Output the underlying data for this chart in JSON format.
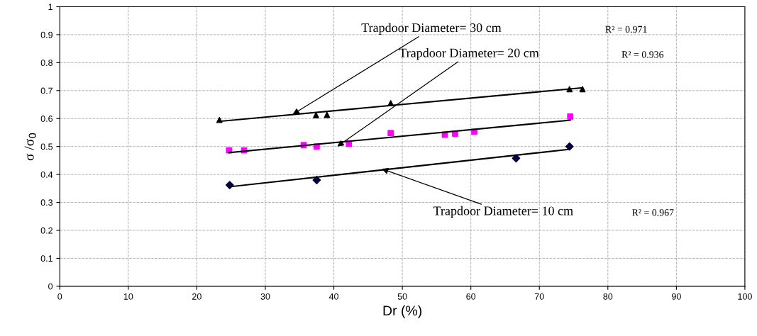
{
  "chart_data": {
    "type": "scatter",
    "xlabel": "Dr (%)",
    "ylabel": "σ /σ$_{0}$",
    "xlim": [
      0,
      100
    ],
    "xticks": [
      0,
      10,
      20,
      30,
      40,
      50,
      60,
      70,
      80,
      90,
      100
    ],
    "ylim": [
      0,
      1
    ],
    "yticks": [
      0,
      0.1,
      0.2,
      0.3,
      0.4,
      0.5,
      0.6,
      0.7,
      0.8,
      0.9,
      1
    ],
    "grid": true,
    "line_style": "solid",
    "series": [
      {
        "marker": "triangle",
        "color": "#000000",
        "x": [
          23.3,
          37.4,
          39,
          48.3,
          74.4,
          76.3
        ],
        "values": [
          0.595,
          0.612,
          0.613,
          0.655,
          0.705,
          0.705
        ]
      },
      {
        "marker": "square",
        "color": "#ff00ff",
        "x": [
          24.7,
          26.9,
          35.6,
          37.5,
          42.2,
          48.3,
          56.2,
          57.7,
          60.5,
          74.5
        ],
        "values": [
          0.486,
          0.486,
          0.505,
          0.5,
          0.51,
          0.548,
          0.542,
          0.546,
          0.553,
          0.607
        ]
      },
      {
        "marker": "diamond",
        "color": "#000040",
        "x": [
          24.8,
          37.5,
          66.6,
          74.4
        ],
        "values": [
          0.362,
          0.38,
          0.458,
          0.5
        ]
      },
      {
        "type": "line",
        "marker": "none",
        "color": "#000000",
        "x": [
          23.3,
          76.3
        ],
        "values": [
          0.59,
          0.71
        ]
      },
      {
        "type": "line",
        "marker": "none",
        "color": "#000000",
        "x": [
          24.7,
          74.5
        ],
        "values": [
          0.478,
          0.594
        ]
      },
      {
        "type": "line",
        "marker": "none",
        "color": "#000000",
        "x": [
          24.8,
          74.4
        ],
        "values": [
          0.356,
          0.49
        ]
      }
    ],
    "annotations": [
      {
        "text": "Trapdoor Diameter= 30 cm",
        "x": 34,
        "y": 0.615
      },
      {
        "text": "Trapdoor Diameter= 20 cm",
        "x": 40.5,
        "y": 0.5
      },
      {
        "text": "Trapdoor Diameter= 10 cm",
        "x": 47,
        "y": 0.42
      },
      "R² = 0.971",
      "R² = 0.936",
      "R² = 0.967"
    ]
  }
}
